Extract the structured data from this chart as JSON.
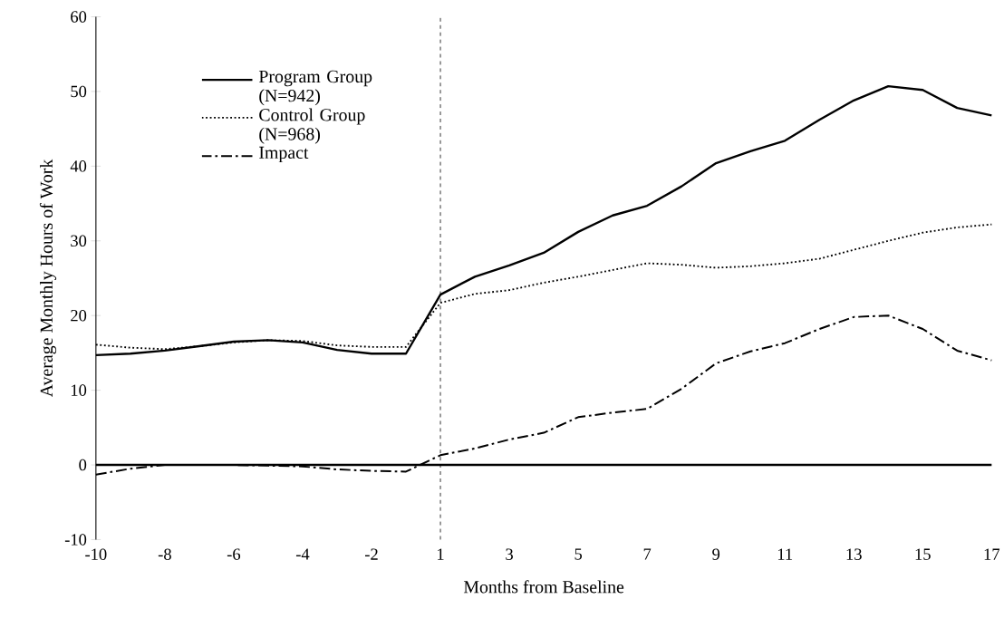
{
  "chart_data": {
    "type": "line",
    "xlabel": "Months from Baseline",
    "ylabel": "Average Monthly Hours of Work",
    "categories": [
      "-10",
      null,
      "-8",
      null,
      "-6",
      null,
      "-4",
      null,
      "-2",
      null,
      "1",
      null,
      "3",
      null,
      "5",
      null,
      "7",
      null,
      "9",
      null,
      "11",
      null,
      "13",
      null,
      "15",
      null,
      "17"
    ],
    "series": [
      {
        "name": "Program Group (N=942)",
        "color": "#000000",
        "line_style": "solid",
        "values": [
          14.7,
          14.9,
          15.3,
          15.9,
          16.5,
          16.7,
          16.4,
          15.4,
          14.9,
          14.9,
          22.8,
          25.2,
          26.7,
          28.4,
          31.2,
          33.4,
          34.7,
          37.3,
          40.4,
          42.0,
          43.4,
          46.2,
          48.8,
          50.7,
          50.2,
          47.8,
          46.8
        ]
      },
      {
        "name": "Control Group (N=968)",
        "color": "#000000",
        "line_style": "dotted",
        "values": [
          16.1,
          15.7,
          15.5,
          15.9,
          16.4,
          16.7,
          16.6,
          16.0,
          15.8,
          15.8,
          21.7,
          22.9,
          23.4,
          24.4,
          25.2,
          26.1,
          27.0,
          26.8,
          26.4,
          26.6,
          27.0,
          27.6,
          28.8,
          30.0,
          31.1,
          31.8,
          32.2
        ]
      },
      {
        "name": "Impact",
        "color": "#000000",
        "line_style": "dashdot",
        "values": [
          -1.3,
          -0.5,
          0.0,
          0.0,
          0.0,
          -0.1,
          -0.2,
          -0.6,
          -0.8,
          -0.9,
          1.3,
          2.2,
          3.4,
          4.3,
          6.4,
          7.0,
          7.5,
          10.2,
          13.6,
          15.2,
          16.3,
          18.2,
          19.8,
          20.0,
          18.2,
          15.3,
          14.0
        ]
      }
    ],
    "ylim": [
      -10,
      60
    ],
    "yticks": [
      -10,
      0,
      10,
      20,
      30,
      40,
      50,
      60
    ],
    "ref_lines": [
      {
        "axis": "x",
        "value": "1",
        "color": "#000000",
        "line_style": "dashed"
      },
      {
        "axis": "y",
        "value": 0,
        "color": "#000000",
        "line_style": "solid"
      }
    ],
    "grid": false,
    "legend": "top left",
    "marker": "none"
  }
}
